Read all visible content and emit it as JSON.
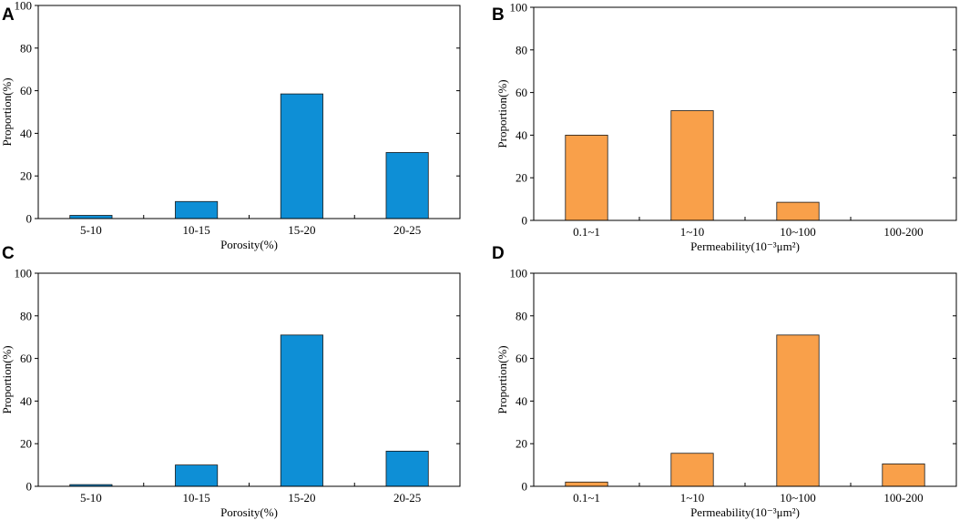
{
  "chart_data": [
    {
      "panel": "A",
      "type": "bar",
      "categories": [
        "5-10",
        "10-15",
        "15-20",
        "20-25"
      ],
      "values": [
        1.5,
        8,
        58.5,
        31
      ],
      "xlabel": "Porosity(%)",
      "ylabel": "Proportion(%)",
      "ylim": [
        0,
        100
      ],
      "yticks": [
        "0",
        "20",
        "40",
        "60",
        "80",
        "100"
      ],
      "color": "#0e8fd6"
    },
    {
      "panel": "B",
      "type": "bar",
      "categories": [
        "0.1~1",
        "1~10",
        "10~100",
        "100-200"
      ],
      "values": [
        40,
        51.5,
        8.5,
        0
      ],
      "xlabel": "Permeability(10⁻³μm²)",
      "ylabel": "Proportion(%)",
      "ylim": [
        0,
        100
      ],
      "yticks": [
        "0",
        "20",
        "40",
        "60",
        "80",
        "100"
      ],
      "color": "#f9a04a"
    },
    {
      "panel": "C",
      "type": "bar",
      "categories": [
        "5-10",
        "10-15",
        "15-20",
        "20-25"
      ],
      "values": [
        0.8,
        10,
        71,
        16.5
      ],
      "xlabel": "Porosity(%)",
      "ylabel": "Proportion(%)",
      "ylim": [
        0,
        100
      ],
      "yticks": [
        "0",
        "20",
        "40",
        "60",
        "80",
        "100"
      ],
      "color": "#0e8fd6"
    },
    {
      "panel": "D",
      "type": "bar",
      "categories": [
        "0.1~1",
        "1~10",
        "10~100",
        "100-200"
      ],
      "values": [
        2,
        15.5,
        71,
        10.5
      ],
      "xlabel": "Permeability(10⁻³μm²)",
      "ylabel": "Proportion(%)",
      "ylim": [
        0,
        100
      ],
      "yticks": [
        "0",
        "20",
        "40",
        "60",
        "80",
        "100"
      ],
      "color": "#f9a04a"
    }
  ]
}
